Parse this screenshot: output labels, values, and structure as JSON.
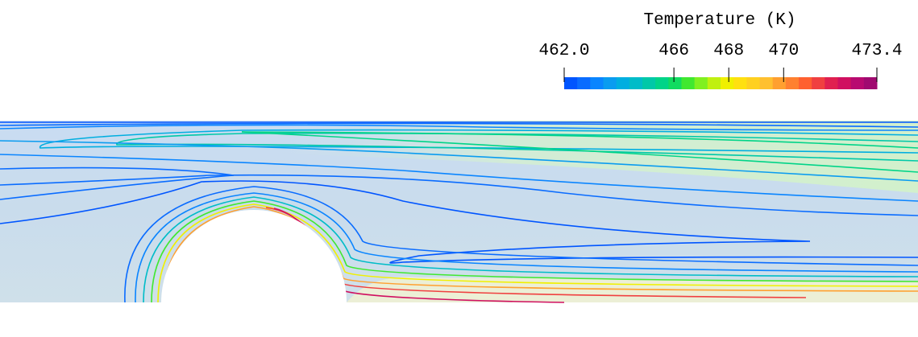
{
  "chart_data": {
    "type": "contour",
    "title": "Temperature (K)",
    "colorbar_lim": [
      462.0,
      473.4
    ],
    "colorbar_ticks": [
      {
        "value": 462.0,
        "label": "462.0"
      },
      466,
      468,
      470,
      473.4
    ],
    "colorscale": [
      "#0055ff",
      "#0a6cff",
      "#0a85ff",
      "#0a9cf0",
      "#00aee0",
      "#00bcc8",
      "#00c8a8",
      "#00d488",
      "#10dc60",
      "#40e830",
      "#80f020",
      "#c0f010",
      "#f0f000",
      "#ffe010",
      "#ffd020",
      "#ffc030",
      "#ffa030",
      "#ff8030",
      "#ff6030",
      "#f04040",
      "#e02050",
      "#d01060",
      "#b80a70",
      "#a00a70"
    ]
  }
}
